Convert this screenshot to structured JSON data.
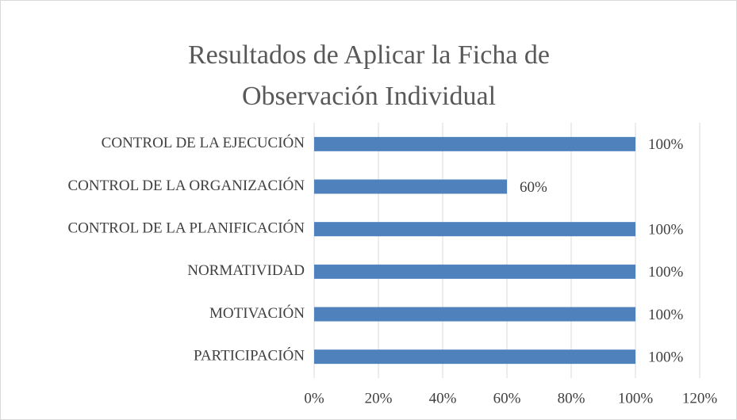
{
  "chart_data": {
    "type": "bar",
    "orientation": "horizontal",
    "title": "Resultados de Aplicar la Ficha de Observación Individual",
    "categories": [
      "CONTROL DE LA EJECUCIÓN",
      "CONTROL DE LA ORGANIZACIÓN",
      "CONTROL DE LA PLANIFICACIÓN",
      "NORMATIVIDAD",
      "MOTIVACIÓN",
      "PARTICIPACIÓN"
    ],
    "values": [
      100,
      60,
      100,
      100,
      100,
      100
    ],
    "value_labels": [
      "100%",
      "60%",
      "100%",
      "100%",
      "100%",
      "100%"
    ],
    "color": "#4f81bd",
    "xlim": [
      0,
      120
    ],
    "xticks": [
      {
        "value": 0,
        "label": "0%"
      },
      {
        "value": 20,
        "label": "20%"
      },
      {
        "value": 40,
        "label": "40%"
      },
      {
        "value": 60,
        "label": "60%"
      },
      {
        "value": 80,
        "label": "80%"
      },
      {
        "value": 100,
        "label": "100%"
      },
      {
        "value": 120,
        "label": "120%"
      }
    ],
    "grid": true
  }
}
